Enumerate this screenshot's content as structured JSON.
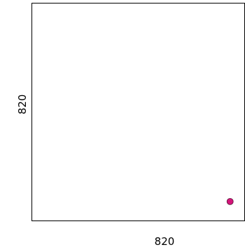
{
  "chart_data": {
    "type": "scatter",
    "title": "",
    "xlabel": "820",
    "ylabel": "820",
    "xlim": [
      0,
      1
    ],
    "ylim": [
      0,
      1
    ],
    "grid": false,
    "series": [
      {
        "color": "#d4147a",
        "points": [
          {
            "x": 0.93,
            "y": 0.09
          }
        ]
      }
    ]
  }
}
